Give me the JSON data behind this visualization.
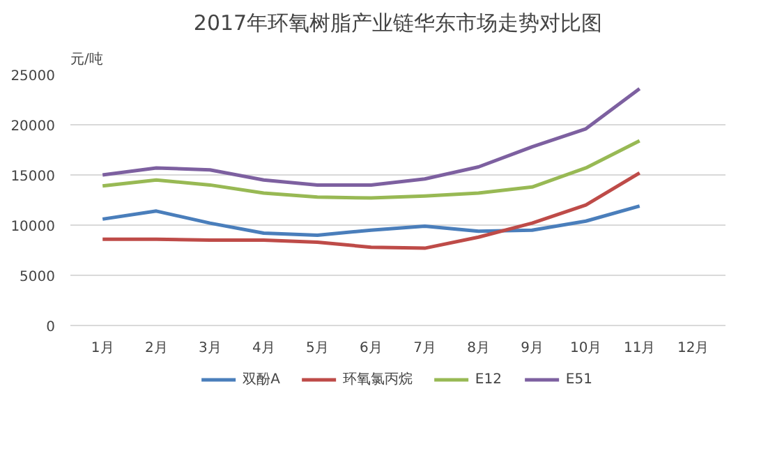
{
  "chart_data": {
    "type": "line",
    "title": "2017年环氧树脂产业链华东市场走势对比图",
    "ylabel": "元/吨",
    "categories": [
      "1月",
      "2月",
      "3月",
      "4月",
      "5月",
      "6月",
      "7月",
      "8月",
      "9月",
      "10月",
      "11月",
      "12月"
    ],
    "series": [
      {
        "name": "双酚A",
        "color": "#4a7ebb",
        "values": [
          10600,
          11400,
          10200,
          9200,
          9000,
          9500,
          9900,
          9400,
          9500,
          10400,
          11900,
          null
        ]
      },
      {
        "name": "环氧氯丙烷",
        "color": "#be4b48",
        "values": [
          8600,
          8600,
          8500,
          8500,
          8300,
          7800,
          7700,
          8800,
          10200,
          12000,
          15200,
          null
        ]
      },
      {
        "name": "E12",
        "color": "#98b954",
        "values": [
          13900,
          14500,
          14000,
          13200,
          12800,
          12700,
          12900,
          13200,
          13800,
          15700,
          18400,
          null
        ]
      },
      {
        "name": "E51",
        "color": "#7d60a0",
        "values": [
          15000,
          15700,
          15500,
          14500,
          14000,
          14000,
          14600,
          15800,
          17800,
          19600,
          23600,
          null
        ]
      }
    ],
    "ylim": [
      0,
      25000
    ],
    "yticks": [
      0,
      5000,
      10000,
      15000,
      20000,
      25000
    ],
    "grid": "y",
    "legend": "bottom",
    "marker": "none",
    "line_style": "solid"
  }
}
